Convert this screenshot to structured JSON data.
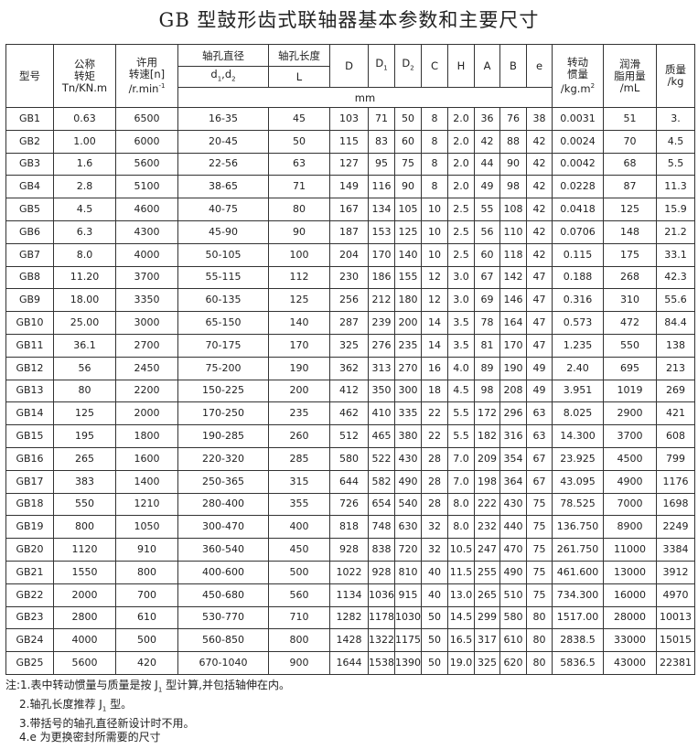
{
  "title": "GB 型鼓形齿式联轴器基本参数和主要尺寸",
  "headers": {
    "model": "型号",
    "torque": [
      "公称",
      "转矩",
      "Tn/KN.m"
    ],
    "speed": [
      "许用",
      "转速[n]",
      "/r.min",
      "-1"
    ],
    "bore_dia": "轴孔直径",
    "bore_dia_sym": [
      "d",
      "1",
      ",d",
      "2"
    ],
    "bore_len": "轴孔长度",
    "bore_len_sym": "L",
    "D": "D",
    "D1": [
      "D",
      "1"
    ],
    "D2": [
      "D",
      "2"
    ],
    "C": "C",
    "H": "H",
    "A": "A",
    "B": "B",
    "e": "e",
    "inertia": [
      "转动",
      "惯量",
      "/kg.m",
      "2"
    ],
    "grease": [
      "润滑",
      "脂用量",
      "/mL"
    ],
    "mass": [
      "质量",
      "/kg"
    ],
    "unit_mm": "mm"
  },
  "rows": [
    [
      "GB1",
      "0.63",
      "6500",
      "16-35",
      "45",
      "103",
      "71",
      "50",
      "8",
      "2.0",
      "36",
      "76",
      "38",
      "0.0031",
      "51",
      "3."
    ],
    [
      "GB2",
      "1.00",
      "6000",
      "20-45",
      "50",
      "115",
      "83",
      "60",
      "8",
      "2.0",
      "42",
      "88",
      "42",
      "0.0024",
      "70",
      "4.5"
    ],
    [
      "GB3",
      "1.6",
      "5600",
      "22-56",
      "63",
      "127",
      "95",
      "75",
      "8",
      "2.0",
      "44",
      "90",
      "42",
      "0.0042",
      "68",
      "5.5"
    ],
    [
      "GB4",
      "2.8",
      "5100",
      "38-65",
      "71",
      "149",
      "116",
      "90",
      "8",
      "2.0",
      "49",
      "98",
      "42",
      "0.0228",
      "87",
      "11.3"
    ],
    [
      "GB5",
      "4.5",
      "4600",
      "40-75",
      "80",
      "167",
      "134",
      "105",
      "10",
      "2.5",
      "55",
      "108",
      "42",
      "0.0418",
      "125",
      "15.9"
    ],
    [
      "GB6",
      "6.3",
      "4300",
      "45-90",
      "90",
      "187",
      "153",
      "125",
      "10",
      "2.5",
      "56",
      "110",
      "42",
      "0.0706",
      "148",
      "21.2"
    ],
    [
      "GB7",
      "8.0",
      "4000",
      "50-105",
      "100",
      "204",
      "170",
      "140",
      "10",
      "2.5",
      "60",
      "118",
      "42",
      "0.115",
      "175",
      "33.1"
    ],
    [
      "GB8",
      "11.20",
      "3700",
      "55-115",
      "112",
      "230",
      "186",
      "155",
      "12",
      "3.0",
      "67",
      "142",
      "47",
      "0.188",
      "268",
      "42.3"
    ],
    [
      "GB9",
      "18.00",
      "3350",
      "60-135",
      "125",
      "256",
      "212",
      "180",
      "12",
      "3.0",
      "69",
      "146",
      "47",
      "0.316",
      "310",
      "55.6"
    ],
    [
      "GB10",
      "25.00",
      "3000",
      "65-150",
      "140",
      "287",
      "239",
      "200",
      "14",
      "3.5",
      "78",
      "164",
      "47",
      "0.573",
      "472",
      "84.4"
    ],
    [
      "GB11",
      "36.1",
      "2700",
      "70-175",
      "170",
      "325",
      "276",
      "235",
      "14",
      "3.5",
      "81",
      "170",
      "47",
      "1.235",
      "550",
      "138"
    ],
    [
      "GB12",
      "56",
      "2450",
      "75-200",
      "190",
      "362",
      "313",
      "270",
      "16",
      "4.0",
      "89",
      "190",
      "49",
      "2.40",
      "695",
      "213"
    ],
    [
      "GB13",
      "80",
      "2200",
      "150-225",
      "200",
      "412",
      "350",
      "300",
      "18",
      "4.5",
      "98",
      "208",
      "49",
      "3.951",
      "1019",
      "269"
    ],
    [
      "GB14",
      "125",
      "2000",
      "170-250",
      "235",
      "462",
      "410",
      "335",
      "22",
      "5.5",
      "172",
      "296",
      "63",
      "8.025",
      "2900",
      "421"
    ],
    [
      "GB15",
      "195",
      "1800",
      "190-285",
      "260",
      "512",
      "465",
      "380",
      "22",
      "5.5",
      "182",
      "316",
      "63",
      "14.300",
      "3700",
      "608"
    ],
    [
      "GB16",
      "265",
      "1600",
      "220-320",
      "285",
      "580",
      "522",
      "430",
      "28",
      "7.0",
      "209",
      "354",
      "67",
      "23.925",
      "4500",
      "799"
    ],
    [
      "GB17",
      "383",
      "1400",
      "250-365",
      "315",
      "644",
      "582",
      "490",
      "28",
      "7.0",
      "198",
      "364",
      "67",
      "43.095",
      "4900",
      "1176"
    ],
    [
      "GB18",
      "550",
      "1210",
      "280-400",
      "355",
      "726",
      "654",
      "540",
      "28",
      "8.0",
      "222",
      "430",
      "75",
      "78.525",
      "7000",
      "1698"
    ],
    [
      "GB19",
      "800",
      "1050",
      "300-470",
      "400",
      "818",
      "748",
      "630",
      "32",
      "8.0",
      "232",
      "440",
      "75",
      "136.750",
      "8900",
      "2249"
    ],
    [
      "GB20",
      "1120",
      "910",
      "360-540",
      "450",
      "928",
      "838",
      "720",
      "32",
      "10.5",
      "247",
      "470",
      "75",
      "261.750",
      "11000",
      "3384"
    ],
    [
      "GB21",
      "1550",
      "800",
      "400-600",
      "500",
      "1022",
      "928",
      "810",
      "40",
      "11.5",
      "255",
      "490",
      "75",
      "461.600",
      "13000",
      "3912"
    ],
    [
      "GB22",
      "2000",
      "700",
      "450-680",
      "560",
      "1134",
      "1036",
      "915",
      "40",
      "13.0",
      "265",
      "510",
      "75",
      "734.300",
      "16000",
      "4970"
    ],
    [
      "GB23",
      "2800",
      "610",
      "530-770",
      "710",
      "1282",
      "1178",
      "1030",
      "50",
      "14.5",
      "299",
      "580",
      "80",
      "1517.00",
      "28000",
      "10013"
    ],
    [
      "GB24",
      "4000",
      "500",
      "560-850",
      "800",
      "1428",
      "1322",
      "1175",
      "50",
      "16.5",
      "317",
      "610",
      "80",
      "2838.5",
      "33000",
      "15015"
    ],
    [
      "GB25",
      "5600",
      "420",
      "670-1040",
      "900",
      "1644",
      "1538",
      "1390",
      "50",
      "19.0",
      "325",
      "620",
      "80",
      "5836.5",
      "43000",
      "22381"
    ]
  ],
  "notes": {
    "n1_a": "注:1.表中转动惯量与质量是按 J",
    "n1_sub": "1",
    "n1_b": " 型计算,并包括轴伸在内。",
    "n2_a": "2.轴孔长度推荐 J",
    "n2_sub": "1",
    "n2_b": " 型。",
    "n3": "3.带括号的轴孔直径新设计时不用。",
    "n4": "4.e 为更换密封所需要的尺寸"
  }
}
